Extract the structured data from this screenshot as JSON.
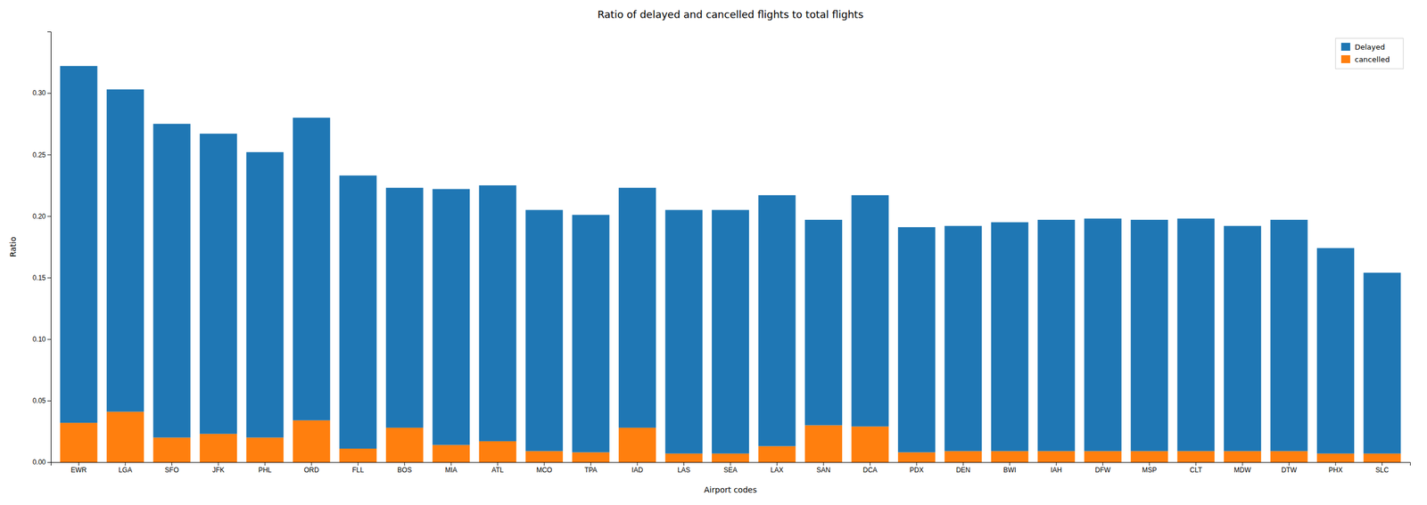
{
  "chart_data": {
    "type": "bar",
    "stacked": true,
    "title": "Ratio of delayed and cancelled flights to total flights",
    "x_label": "Airport codes",
    "y_label": "Ratio",
    "categories": [
      "EWR",
      "LGA",
      "SFO",
      "JFK",
      "PHL",
      "ORD",
      "FLL",
      "BOS",
      "MIA",
      "ATL",
      "MCO",
      "TPA",
      "IAD",
      "LAS",
      "SEA",
      "LAX",
      "SAN",
      "DCA",
      "PDX",
      "DEN",
      "BWI",
      "IAH",
      "DFW",
      "MSP",
      "CLT",
      "MDW",
      "DTW",
      "PHX",
      "SLC"
    ],
    "series": [
      {
        "name": "cancelled",
        "color": "#ff7f0e",
        "values": [
          0.032,
          0.041,
          0.02,
          0.023,
          0.02,
          0.034,
          0.011,
          0.028,
          0.014,
          0.017,
          0.009,
          0.008,
          0.028,
          0.007,
          0.007,
          0.013,
          0.03,
          0.029,
          0.008,
          0.009,
          0.009,
          0.009,
          0.009,
          0.009,
          0.009,
          0.009,
          0.009,
          0.007,
          0.007
        ]
      },
      {
        "name": "Delayed",
        "color": "#1f77b4",
        "values": [
          0.29,
          0.262,
          0.255,
          0.244,
          0.232,
          0.246,
          0.222,
          0.195,
          0.208,
          0.208,
          0.196,
          0.193,
          0.195,
          0.198,
          0.198,
          0.204,
          0.167,
          0.188,
          0.183,
          0.183,
          0.186,
          0.188,
          0.189,
          0.188,
          0.189,
          0.183,
          0.188,
          0.167,
          0.147
        ]
      }
    ],
    "ylim": [
      0,
      0.35
    ],
    "yticks": [
      {
        "value": 0,
        "label": "0.00"
      },
      0.05,
      {
        "value": 0.1,
        "label": "0.10"
      },
      0.15,
      {
        "value": 0.2,
        "label": "0.20"
      },
      0.25,
      {
        "value": 0.3,
        "label": "0.30"
      }
    ],
    "legend": "upper right",
    "grid": false
  }
}
